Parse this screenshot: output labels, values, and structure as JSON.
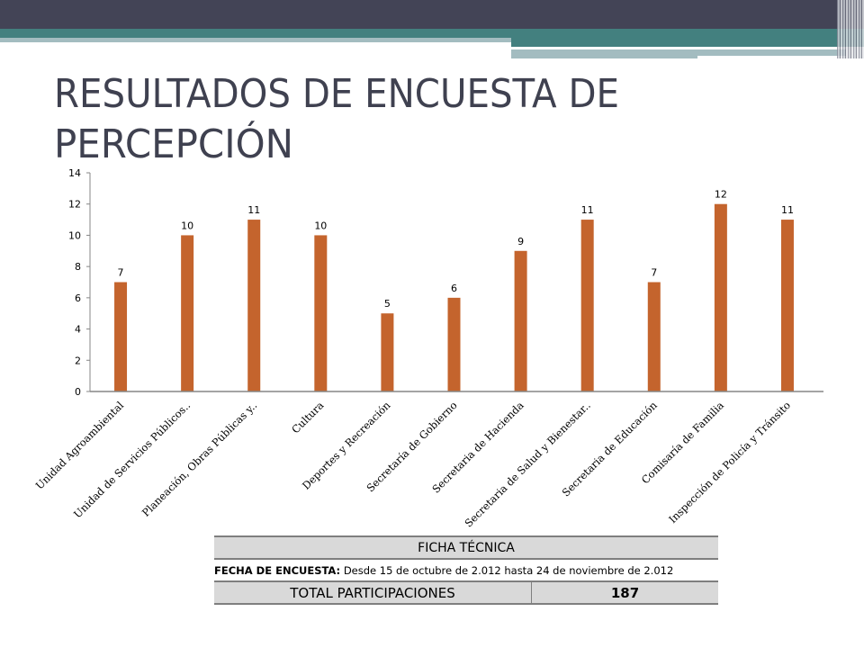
{
  "slide": {
    "title_line1": "RESULTADOS DE ENCUESTA DE",
    "title_line2": "PERCEPCIÓN",
    "colors": {
      "header_dark": "#434456",
      "teal": "#43807f",
      "light_teal": "#a3bcc0",
      "title": "#3f4150",
      "bar": "#c4642d"
    }
  },
  "chart_data": {
    "type": "bar",
    "categories": [
      "Unidad Agroambiental",
      "Unidad de Servicios Públicos..",
      "Planeación, Obras Públicas y..",
      "Cultura",
      "Deportes y Recreación",
      "Secretaría de Gobierno",
      "Secretaria de Hacienda",
      "Secretaria de Salud y Bienestar..",
      "Secretaria de Educación",
      "Comisaría de Familia",
      "Inspección de Policía y Tránsito"
    ],
    "values": [
      7,
      10,
      11,
      10,
      5,
      6,
      9,
      11,
      7,
      12,
      11
    ],
    "ylim": [
      0,
      14
    ],
    "yticks": [
      0,
      2,
      4,
      6,
      8,
      10,
      12,
      14
    ],
    "grid": false,
    "data_labels": true,
    "bar_color": "#c4642d"
  },
  "ficha": {
    "header": "FICHA TÉCNICA",
    "fecha_label": "FECHA DE ENCUESTA:",
    "fecha_value": "Desde 15 de octubre de 2.012  hasta 24 de noviembre de 2.012",
    "total_label": "TOTAL PARTICIPACIONES",
    "total_value": "187"
  }
}
